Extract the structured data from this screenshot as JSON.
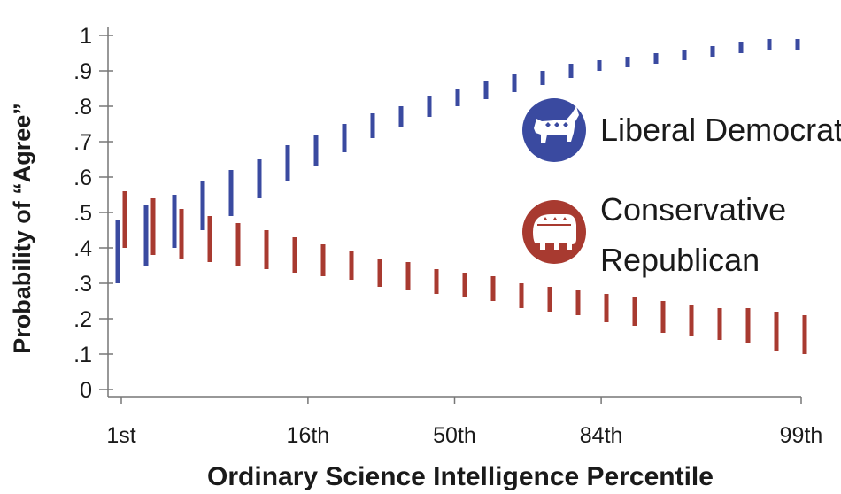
{
  "chart_data": {
    "type": "error-bar",
    "xlabel": "Ordinary Science Intelligence Percentile",
    "ylabel": "Probability of “Agree”",
    "ylim": [
      0,
      1
    ],
    "y_ticks": [
      "0",
      ".1",
      ".2",
      ".3",
      ".4",
      ".5",
      ".6",
      ".7",
      ".8",
      ".9",
      "1"
    ],
    "x_ticks": [
      "1st",
      "16th",
      "50th",
      "84th",
      "99th"
    ],
    "grid": false,
    "legend": "right",
    "series": [
      {
        "name": "Liberal Democrat",
        "color": "#3a4aa0",
        "icon": "donkey-icon",
        "ranges": [
          [
            0.3,
            0.48
          ],
          [
            0.35,
            0.52
          ],
          [
            0.4,
            0.55
          ],
          [
            0.45,
            0.59
          ],
          [
            0.49,
            0.62
          ],
          [
            0.54,
            0.65
          ],
          [
            0.59,
            0.69
          ],
          [
            0.63,
            0.72
          ],
          [
            0.67,
            0.75
          ],
          [
            0.71,
            0.78
          ],
          [
            0.74,
            0.8
          ],
          [
            0.77,
            0.83
          ],
          [
            0.8,
            0.85
          ],
          [
            0.82,
            0.87
          ],
          [
            0.84,
            0.89
          ],
          [
            0.86,
            0.9
          ],
          [
            0.88,
            0.92
          ],
          [
            0.9,
            0.93
          ],
          [
            0.91,
            0.94
          ],
          [
            0.92,
            0.95
          ],
          [
            0.93,
            0.96
          ],
          [
            0.94,
            0.97
          ],
          [
            0.95,
            0.98
          ],
          [
            0.96,
            0.99
          ],
          [
            0.96,
            0.99
          ]
        ]
      },
      {
        "name": "Conservative Republican",
        "label_lines": [
          "Conservative",
          "Republican"
        ],
        "color": "#a83a30",
        "icon": "elephant-icon",
        "ranges": [
          [
            0.4,
            0.56
          ],
          [
            0.38,
            0.54
          ],
          [
            0.37,
            0.51
          ],
          [
            0.36,
            0.49
          ],
          [
            0.35,
            0.47
          ],
          [
            0.34,
            0.45
          ],
          [
            0.33,
            0.43
          ],
          [
            0.32,
            0.41
          ],
          [
            0.31,
            0.39
          ],
          [
            0.29,
            0.37
          ],
          [
            0.28,
            0.36
          ],
          [
            0.27,
            0.34
          ],
          [
            0.26,
            0.33
          ],
          [
            0.25,
            0.32
          ],
          [
            0.23,
            0.3
          ],
          [
            0.22,
            0.29
          ],
          [
            0.21,
            0.28
          ],
          [
            0.19,
            0.27
          ],
          [
            0.18,
            0.26
          ],
          [
            0.16,
            0.25
          ],
          [
            0.15,
            0.24
          ],
          [
            0.14,
            0.23
          ],
          [
            0.13,
            0.23
          ],
          [
            0.11,
            0.22
          ],
          [
            0.1,
            0.21
          ]
        ]
      }
    ]
  }
}
